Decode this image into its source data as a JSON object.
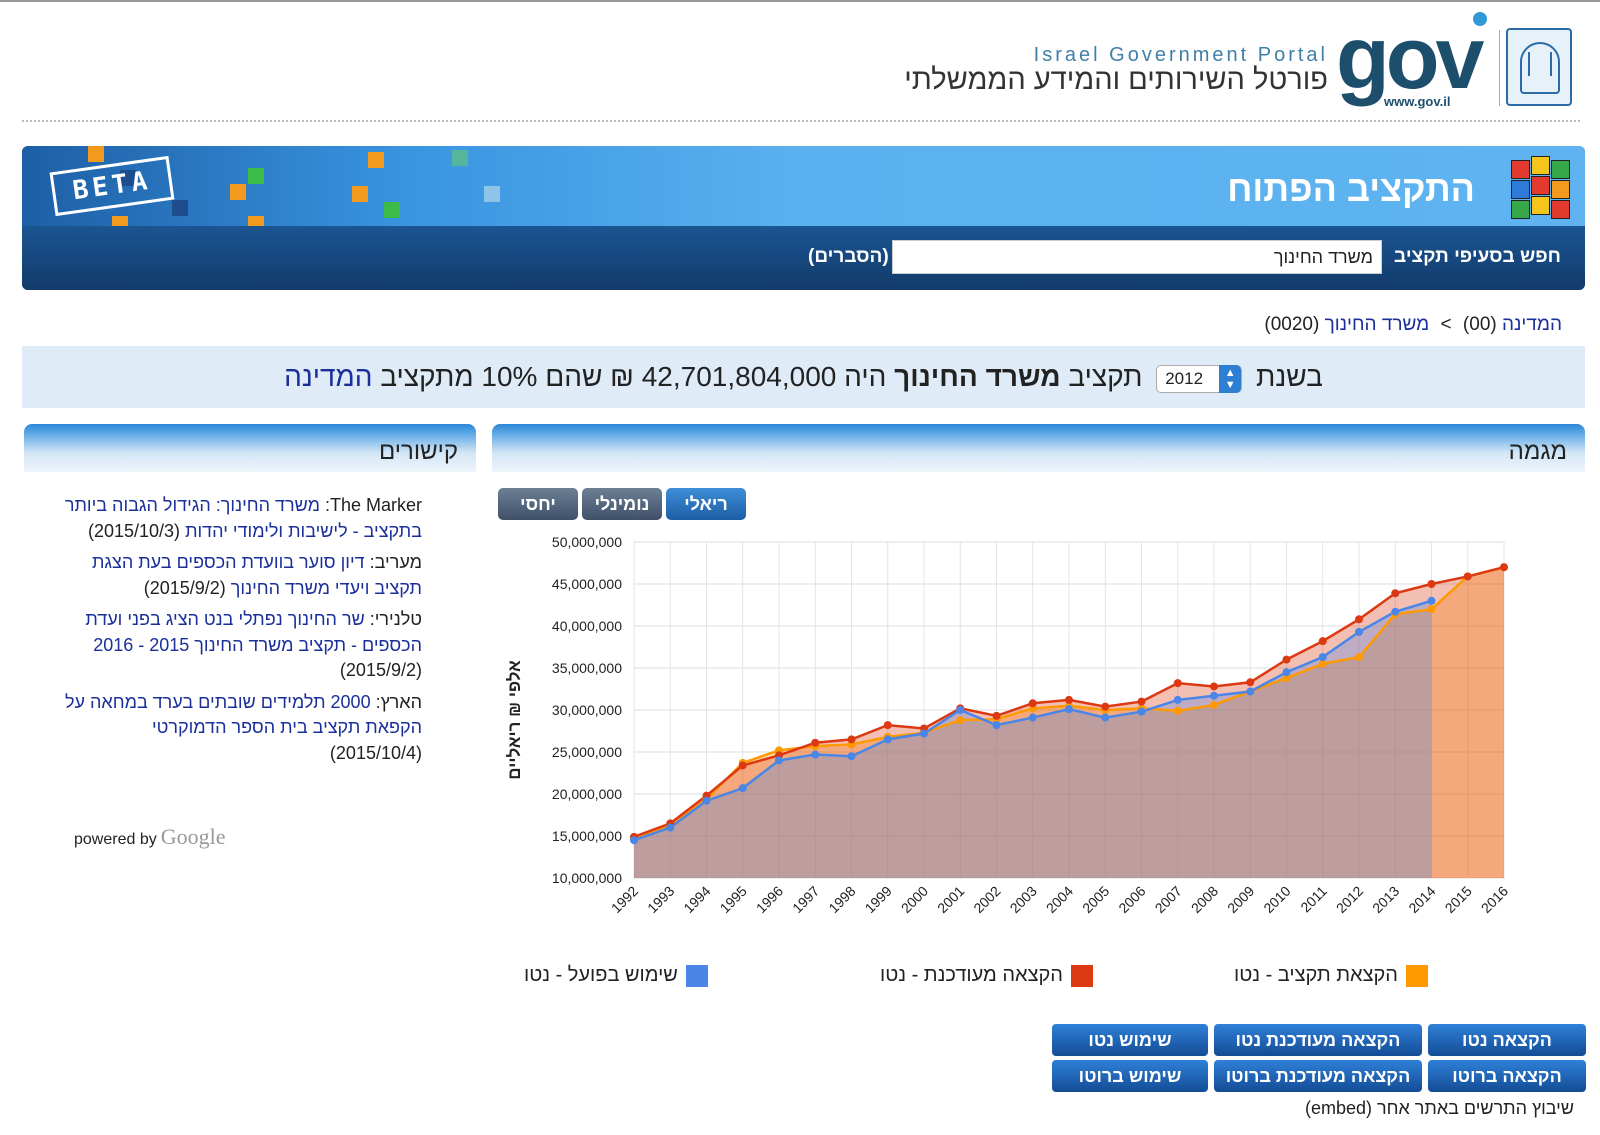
{
  "header": {
    "portal_en": "Israel Government Portal",
    "portal_he": "פורטל השירותים והמידע הממשלתי",
    "logo_text": "gov",
    "logo_url_text": "www.gov.il"
  },
  "banner": {
    "beta_label": "BETA",
    "title": "התקציב הפתוח",
    "search_label": "חפש בסעיפי תקציב",
    "search_value": "משרד החינוך",
    "explanations_link": "(הסברים)"
  },
  "breadcrumb": {
    "root_link": "המדינה",
    "root_code": "(00)",
    "separator": ">",
    "current_link": "משרד החינוך",
    "current_code": "(0020)"
  },
  "summary": {
    "prefix": "בשנת",
    "year": "2012",
    "budget_word": "תקציב",
    "ministry": "משרד החינוך",
    "is_word": "היה",
    "amount": "42,701,804,000 ₪",
    "share_text": "שהם 10% מתקציב",
    "state_link": "המדינה"
  },
  "panels": {
    "trend_title": "מגמה",
    "links_title": "קישורים"
  },
  "toggles": [
    {
      "label": "ריאלי",
      "active": true
    },
    {
      "label": "נומינלי",
      "active": false
    },
    {
      "label": "יחסי",
      "active": false
    }
  ],
  "links": [
    {
      "source": "The Marker:",
      "title": "משרד החינוך: הגידול הגבוה ביותר בתקציב - לישיבות ולימודי יהדות",
      "date": "(2015/10/3)"
    },
    {
      "source": "מעריב:",
      "title": "דיון סוער בוועדת הכספים בעת הצגת תקציב ויעדי משרד החינוך",
      "date": "(2015/9/2)"
    },
    {
      "source": "טלנירי:",
      "title": "שר החינוך נפתלי בנט הציג בפני ועדת הכספים - תקציב משרד החינוך 2015 - 2016",
      "date": "(2015/9/2)"
    },
    {
      "source": "הארץ:",
      "title": "2000 תלמידים שובתים בערד במחאה על הקפאת תקציב בית הספר הדמוקרטי",
      "date": "(2015/10/4)"
    }
  ],
  "powered": {
    "text": "powered by",
    "brand": "Google"
  },
  "chart_data": {
    "type": "area",
    "ylabel": "אלפי ₪ ריאליים",
    "ylim": [
      10000000,
      50000000
    ],
    "yticks": [
      "10,000,000",
      "15,000,000",
      "20,000,000",
      "25,000,000",
      "30,000,000",
      "35,000,000",
      "40,000,000",
      "45,000,000",
      "50,000,000"
    ],
    "categories": [
      "1992",
      "1993",
      "1994",
      "1995",
      "1996",
      "1997",
      "1998",
      "1999",
      "2000",
      "2001",
      "2002",
      "2003",
      "2004",
      "2005",
      "2006",
      "2007",
      "2008",
      "2009",
      "2010",
      "2011",
      "2012",
      "2013",
      "2014",
      "2015",
      "2016"
    ],
    "series": [
      {
        "name": "הקצאת תקציב - נטו",
        "color": "#ff9900",
        "values": [
          14600000,
          16200000,
          19400000,
          23700000,
          25200000,
          25700000,
          25900000,
          26800000,
          27300000,
          28800000,
          28900000,
          30200000,
          30500000,
          30000000,
          30200000,
          29900000,
          30600000,
          32200000,
          33800000,
          35500000,
          36300000,
          41400000,
          42000000,
          45900000,
          47000000
        ]
      },
      {
        "name": "הקצאה מעודכנת - נטו",
        "color": "#dc3912",
        "values": [
          14900000,
          16500000,
          19800000,
          23400000,
          24600000,
          26100000,
          26500000,
          28200000,
          27800000,
          30200000,
          29300000,
          30800000,
          31200000,
          30400000,
          31000000,
          33200000,
          32800000,
          33300000,
          36000000,
          38200000,
          40800000,
          43900000,
          45000000,
          45900000,
          47000000
        ]
      },
      {
        "name": "שימוש בפועל - נטו",
        "color": "#4a86e8",
        "values": [
          14500000,
          16000000,
          19200000,
          20700000,
          24000000,
          24700000,
          24500000,
          26500000,
          27200000,
          30000000,
          28200000,
          29100000,
          30100000,
          29100000,
          29800000,
          31200000,
          31700000,
          32200000,
          34500000,
          36300000,
          39300000,
          41700000,
          43000000,
          null,
          null
        ]
      }
    ]
  },
  "legend": [
    {
      "label": "הקצאת תקציב - נטו",
      "color": "#ff9900"
    },
    {
      "label": "הקצאה מעודכנת - נטו",
      "color": "#dc3912"
    },
    {
      "label": "שימוש בפועל - נטו",
      "color": "#4a86e8"
    }
  ],
  "bottom_buttons": [
    {
      "label": "הקצאה נטו"
    },
    {
      "label": "הקצאה מעודכנת נטו"
    },
    {
      "label": "שימוש נטו"
    },
    {
      "label": "הקצאה ברוטו"
    },
    {
      "label": "הקצאה מעודכנת ברוטו"
    },
    {
      "label": "שימוש ברוטו"
    }
  ],
  "embed_text": "שיבוץ התרשים באתר אחר (embed)"
}
